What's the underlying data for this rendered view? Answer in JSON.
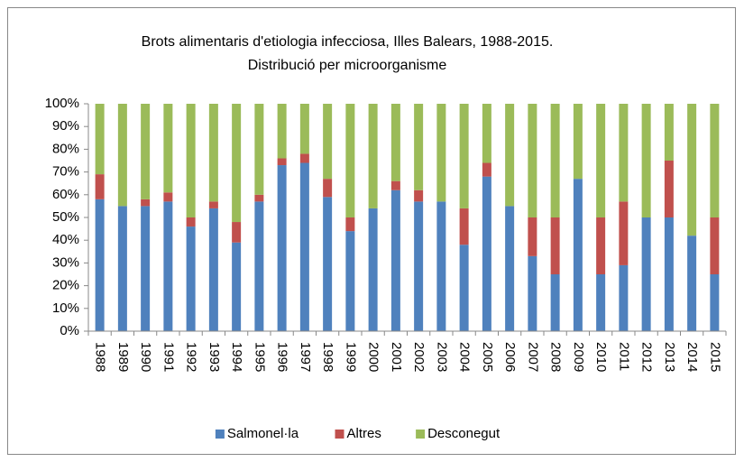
{
  "chart_data": {
    "type": "stacked_bar",
    "title": "Brots alimentaris d'etiologia infecciosa, Illes Balears, 1988-2015.",
    "subtitle": "Distribució per microorganisme",
    "categories": [
      "1988",
      "1989",
      "1990",
      "1991",
      "1992",
      "1993",
      "1994",
      "1995",
      "1996",
      "1997",
      "1998",
      "1999",
      "2000",
      "2001",
      "2002",
      "2003",
      "2004",
      "2005",
      "2006",
      "2007",
      "2008",
      "2009",
      "2010",
      "2011",
      "2012",
      "2013",
      "2014",
      "2015"
    ],
    "series": [
      {
        "name": "Salmonel·la",
        "color": "#4f81bd",
        "values": [
          58,
          55,
          55,
          57,
          46,
          54,
          39,
          57,
          73,
          74,
          59,
          44,
          54,
          62,
          57,
          57,
          38,
          68,
          55,
          33,
          25,
          67,
          25,
          29,
          50,
          50,
          42,
          25
        ]
      },
      {
        "name": "Altres",
        "color": "#c0504d",
        "values": [
          11,
          0,
          3,
          4,
          4,
          3,
          9,
          3,
          3,
          4,
          8,
          6,
          0,
          4,
          5,
          0,
          16,
          6,
          0,
          17,
          25,
          0,
          25,
          28,
          0,
          25,
          0,
          25
        ]
      },
      {
        "name": "Desconegut",
        "color": "#9bbb59",
        "values": [
          31,
          45,
          42,
          39,
          50,
          43,
          52,
          40,
          24,
          22,
          33,
          50,
          46,
          34,
          38,
          43,
          46,
          26,
          45,
          50,
          50,
          33,
          50,
          43,
          50,
          25,
          58,
          50
        ]
      }
    ],
    "ylim": [
      0,
      100
    ],
    "yticks": [
      {
        "value": 0,
        "label": "0%"
      },
      {
        "value": 10,
        "label": "10%"
      },
      {
        "value": 20,
        "label": "20%"
      },
      {
        "value": 30,
        "label": "30%"
      },
      {
        "value": 40,
        "label": "40%"
      },
      {
        "value": 50,
        "label": "50%"
      },
      {
        "value": 60,
        "label": "60%"
      },
      {
        "value": 70,
        "label": "70%"
      },
      {
        "value": 80,
        "label": "80%"
      },
      {
        "value": 90,
        "label": "90%"
      },
      {
        "value": 100,
        "label": "100%"
      }
    ],
    "legend": "bottom"
  }
}
